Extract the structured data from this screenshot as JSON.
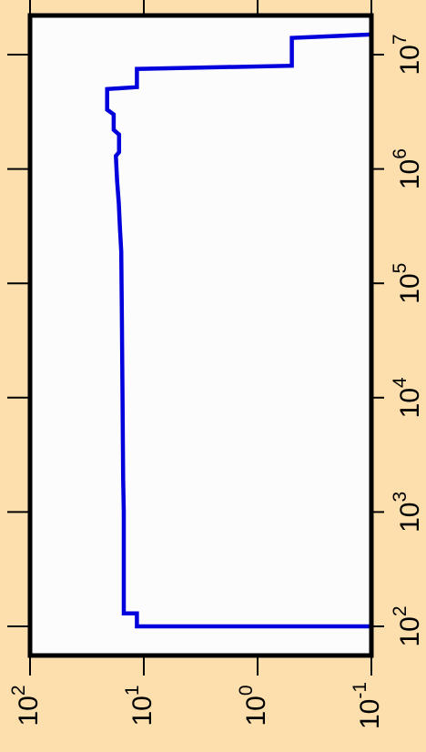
{
  "chart_data": {
    "type": "line",
    "step": true,
    "title": "",
    "xlabel": "",
    "ylabel": "",
    "orientation": "rotated-90-ccw",
    "x_scale": "log",
    "y_scale": "log",
    "xlim": [
      60,
      18000000
    ],
    "ylim": [
      0.1,
      100
    ],
    "x_ticks": [
      {
        "value": 100,
        "base": "10",
        "exp": "2"
      },
      {
        "value": 1000,
        "base": "10",
        "exp": "3"
      },
      {
        "value": 10000,
        "base": "10",
        "exp": "4"
      },
      {
        "value": 100000,
        "base": "10",
        "exp": "5"
      },
      {
        "value": 1000000,
        "base": "10",
        "exp": "6"
      },
      {
        "value": 10000000,
        "base": "10",
        "exp": "7"
      }
    ],
    "y_ticks": [
      {
        "value": 100,
        "base": "10",
        "exp": "2"
      },
      {
        "value": 10,
        "base": "10",
        "exp": "1"
      },
      {
        "value": 1,
        "base": "10",
        "exp": "0"
      },
      {
        "value": 0.1,
        "base": "10",
        "exp": "-1"
      }
    ],
    "grid": false,
    "series": [
      {
        "color": "#0000dd",
        "points": [
          [
            100,
            0.1
          ],
          [
            100,
            11.5
          ],
          [
            130,
            11.5
          ],
          [
            130,
            15
          ],
          [
            1000,
            15
          ],
          [
            1900,
            15.2
          ],
          [
            10000,
            15.4
          ],
          [
            50000,
            15.6
          ],
          [
            190000,
            15.8
          ],
          [
            300000,
            16.2
          ],
          [
            500000,
            16.6
          ],
          [
            800000,
            17.2
          ],
          [
            1300000,
            17.6
          ],
          [
            1400000,
            16.5
          ],
          [
            2000000,
            16.5
          ],
          [
            2200000,
            18.4
          ],
          [
            3000000,
            18.4
          ],
          [
            3300000,
            21
          ],
          [
            5000000,
            21
          ],
          [
            5200000,
            11.5
          ],
          [
            7500000,
            11.5
          ],
          [
            8000000,
            0.5
          ],
          [
            14000000,
            0.5
          ],
          [
            15000000,
            0.1
          ]
        ]
      }
    ],
    "colors": {
      "background": "#fcdfac",
      "plot_area": "#fcfcfc",
      "line": "#0000dd",
      "frame": "#000000"
    }
  }
}
